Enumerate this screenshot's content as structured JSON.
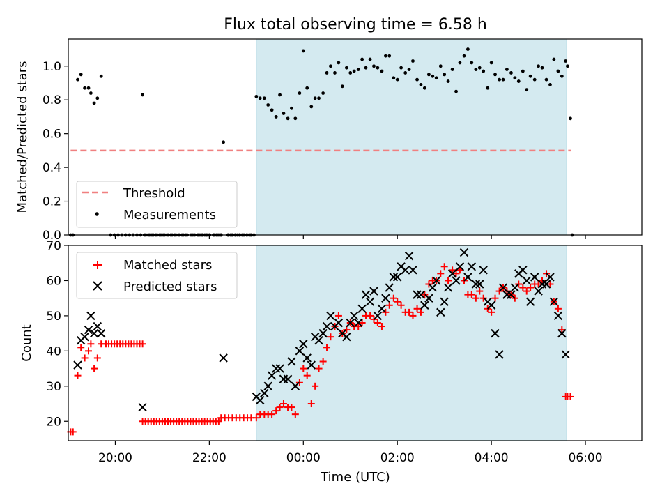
{
  "chart_data": {
    "type": "scatter",
    "title": "Flux total observing time = 6.58 h",
    "xlabel": "Time (UTC)",
    "x_axis": {
      "range_hours": [
        -5.0,
        7.2
      ],
      "tick_hours": [
        -4,
        -2,
        0,
        2,
        4,
        6
      ],
      "tick_labels": [
        "20:00",
        "22:00",
        "00:00",
        "02:00",
        "04:00",
        "06:00"
      ]
    },
    "observing_window": {
      "color": "#d4eaf0",
      "start_hours": -1.0,
      "end_hours": 5.6
    },
    "panels": [
      {
        "ylabel": "Matched/Predicted stars",
        "ylim": [
          0.0,
          1.16
        ],
        "yticks": [
          0.0,
          0.2,
          0.4,
          0.6,
          0.8,
          1.0
        ],
        "ytick_labels": [
          "0.0",
          "0.2",
          "0.4",
          "0.6",
          "0.8",
          "1.0"
        ],
        "legend_position": "lower-left",
        "threshold": {
          "name": "Threshold",
          "value": 0.5,
          "x_start": -4.95,
          "x_end": 5.7,
          "color": "#f08080"
        },
        "series": [
          {
            "name": "Measurements",
            "marker": "dot",
            "color": "#000000",
            "x": [
              -4.95,
              -4.9,
              -4.8,
              -4.73,
              -4.65,
              -4.57,
              -4.52,
              -4.45,
              -4.38,
              -4.3,
              -3.42,
              -1.7,
              -1.0,
              -0.92,
              -0.83,
              -0.75,
              -0.67,
              -0.58,
              -0.5,
              -0.42,
              -0.33,
              -0.25,
              -0.17,
              -0.08,
              0.0,
              0.08,
              0.17,
              0.25,
              0.33,
              0.42,
              0.5,
              0.58,
              0.67,
              0.75,
              0.83,
              0.92,
              1.0,
              1.08,
              1.17,
              1.25,
              1.33,
              1.42,
              1.5,
              1.58,
              1.67,
              1.75,
              1.83,
              1.92,
              2.0,
              2.08,
              2.17,
              2.25,
              2.33,
              2.42,
              2.5,
              2.58,
              2.67,
              2.75,
              2.83,
              2.92,
              3.0,
              3.08,
              3.17,
              3.25,
              3.33,
              3.42,
              3.5,
              3.58,
              3.67,
              3.75,
              3.83,
              3.92,
              4.0,
              4.08,
              4.17,
              4.25,
              4.33,
              4.42,
              4.5,
              4.58,
              4.67,
              4.75,
              4.83,
              4.92,
              5.0,
              5.08,
              5.17,
              5.25,
              5.33,
              5.42,
              5.5,
              5.58,
              5.62,
              5.68
            ],
            "y": [
              0.0,
              0.0,
              0.92,
              0.95,
              0.87,
              0.87,
              0.84,
              0.78,
              0.81,
              0.94,
              0.83,
              0.55,
              0.82,
              0.81,
              0.81,
              0.77,
              0.74,
              0.7,
              0.83,
              0.72,
              0.69,
              0.75,
              0.69,
              0.84,
              1.09,
              0.87,
              0.76,
              0.81,
              0.81,
              0.84,
              0.96,
              1.0,
              0.96,
              1.02,
              0.88,
              0.99,
              0.96,
              0.97,
              0.98,
              1.04,
              0.99,
              1.04,
              1.0,
              0.99,
              0.97,
              1.06,
              1.06,
              0.93,
              0.92,
              0.99,
              0.96,
              0.98,
              1.03,
              0.92,
              0.89,
              0.87,
              0.95,
              0.94,
              0.93,
              1.0,
              0.95,
              0.91,
              0.98,
              0.85,
              1.02,
              1.06,
              1.1,
              1.02,
              0.98,
              0.99,
              0.97,
              0.87,
              1.02,
              0.95,
              0.92,
              0.92,
              0.98,
              0.96,
              0.93,
              0.91,
              0.97,
              0.86,
              0.94,
              0.92,
              1.0,
              0.99,
              0.92,
              0.89,
              1.04,
              0.97,
              0.94,
              1.03,
              1.0,
              0.69
            ]
          },
          {
            "name": "Measurements",
            "marker": "dot",
            "color": "#000000",
            "x_from": -4.1,
            "x_to": -2.5,
            "step": 0.08,
            "y_const": 0.0,
            "x_extra": [
              -2.35,
              -2.25,
              -2.2,
              -2.15,
              -2.1,
              -2.05,
              -2.0,
              -1.9,
              -1.85,
              -1.8,
              -1.75,
              -1.6,
              -1.55,
              -1.5,
              -1.45,
              -1.4,
              -1.35,
              -1.3,
              -1.25,
              -1.2,
              -1.15,
              -1.1,
              -1.05,
              5.72
            ],
            "fill_ranges": [
              [
                -3.35,
                -1.75
              ],
              [
                -1.6,
                -1.05
              ]
            ]
          }
        ]
      },
      {
        "ylabel": "Count",
        "ylim": [
          14.5,
          70.0
        ],
        "yticks": [
          20,
          30,
          40,
          50,
          60,
          70
        ],
        "ytick_labels": [
          "20",
          "30",
          "40",
          "50",
          "60",
          "70"
        ],
        "legend_position": "upper-left",
        "series": [
          {
            "name": "Matched stars",
            "marker": "plus",
            "color": "#ff0000",
            "x": [
              -4.95,
              -4.9,
              -4.8,
              -4.73,
              -4.65,
              -4.57,
              -4.52,
              -4.45,
              -4.38,
              -4.3,
              -3.42,
              -1.0,
              -0.92,
              -0.83,
              -0.75,
              -0.67,
              -0.58,
              -0.5,
              -0.42,
              -0.33,
              -0.25,
              -0.17,
              -0.08,
              0.0,
              0.08,
              0.17,
              0.25,
              0.33,
              0.42,
              0.5,
              0.58,
              0.67,
              0.75,
              0.83,
              0.92,
              1.0,
              1.08,
              1.17,
              1.25,
              1.33,
              1.42,
              1.5,
              1.58,
              1.67,
              1.75,
              1.83,
              1.92,
              2.0,
              2.08,
              2.17,
              2.25,
              2.33,
              2.42,
              2.5,
              2.58,
              2.67,
              2.75,
              2.83,
              2.92,
              3.0,
              3.08,
              3.17,
              3.25,
              3.33,
              3.42,
              3.5,
              3.58,
              3.67,
              3.75,
              3.83,
              3.92,
              4.0,
              4.08,
              4.17,
              4.25,
              4.33,
              4.42,
              4.5,
              4.58,
              4.67,
              4.75,
              4.83,
              4.92,
              5.0,
              5.08,
              5.17,
              5.25,
              5.33,
              5.42,
              5.5,
              5.58,
              5.62,
              5.68
            ],
            "y": [
              17,
              17,
              33,
              41,
              38,
              40,
              42,
              35,
              38,
              42,
              42,
              21,
              22,
              22,
              22,
              22,
              23,
              24,
              25,
              24,
              24,
              22,
              31,
              35,
              33,
              25,
              30,
              35,
              37,
              41,
              44,
              47,
              50,
              45,
              46,
              48,
              47,
              47,
              48,
              50,
              50,
              49,
              48,
              47,
              51,
              53,
              55,
              54,
              53,
              51,
              51,
              50,
              52,
              51,
              56,
              59,
              60,
              60,
              62,
              64,
              60,
              63,
              62,
              63,
              60,
              56,
              56,
              55,
              57,
              55,
              52,
              51,
              55,
              57,
              58,
              57,
              56,
              55,
              59,
              58,
              57,
              58,
              59,
              59,
              60,
              62,
              59,
              54,
              52,
              46,
              27,
              27,
              27
            ],
            "x_from": -4.2,
            "x_to": -3.45,
            "step": 0.06,
            "y_const": 42,
            "x2_from": -3.42,
            "x2_to": -1.8,
            "step2": 0.06,
            "y2_const": 20,
            "x3_from": -1.75,
            "x3_to": -1.05,
            "step3": 0.08,
            "y3_const": 21
          },
          {
            "name": "Predicted stars",
            "marker": "x",
            "color": "#000000",
            "x": [
              -4.8,
              -4.73,
              -4.65,
              -4.57,
              -4.52,
              -4.45,
              -4.38,
              -4.3,
              -3.42,
              -1.7,
              -1.0,
              -0.92,
              -0.83,
              -0.75,
              -0.67,
              -0.58,
              -0.5,
              -0.42,
              -0.33,
              -0.25,
              -0.17,
              -0.08,
              0.0,
              0.08,
              0.17,
              0.25,
              0.33,
              0.42,
              0.5,
              0.58,
              0.67,
              0.75,
              0.83,
              0.92,
              1.0,
              1.08,
              1.17,
              1.25,
              1.33,
              1.42,
              1.5,
              1.58,
              1.67,
              1.75,
              1.83,
              1.92,
              2.0,
              2.08,
              2.17,
              2.25,
              2.33,
              2.42,
              2.5,
              2.58,
              2.67,
              2.75,
              2.83,
              2.92,
              3.0,
              3.08,
              3.17,
              3.25,
              3.33,
              3.42,
              3.5,
              3.58,
              3.67,
              3.75,
              3.83,
              3.92,
              4.0,
              4.08,
              4.17,
              4.25,
              4.33,
              4.42,
              4.5,
              4.58,
              4.67,
              4.75,
              4.83,
              4.92,
              5.0,
              5.08,
              5.17,
              5.25,
              5.33,
              5.42,
              5.5,
              5.58
            ],
            "y": [
              36,
              43,
              44,
              46,
              50,
              45,
              47,
              45,
              24,
              38,
              27,
              26,
              28,
              30,
              33,
              35,
              35,
              32,
              32,
              37,
              30,
              40,
              42,
              38,
              36,
              44,
              43,
              45,
              47,
              50,
              47,
              48,
              45,
              44,
              48,
              50,
              48,
              52,
              56,
              54,
              57,
              50,
              52,
              55,
              58,
              61,
              61,
              64,
              63,
              67,
              63,
              56,
              56,
              53,
              55,
              58,
              60,
              51,
              54,
              58,
              62,
              60,
              64,
              68,
              61,
              64,
              59,
              59,
              63,
              54,
              53,
              45,
              39,
              58,
              56,
              56,
              58,
              62,
              63,
              60,
              54,
              61,
              57,
              59,
              59,
              61,
              54,
              50,
              45,
              39
            ]
          }
        ]
      }
    ]
  }
}
